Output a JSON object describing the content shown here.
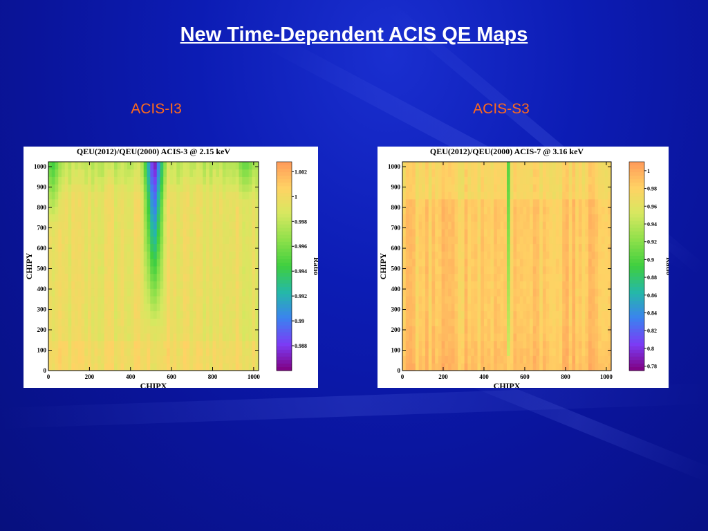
{
  "slide": {
    "title": "New Time-Dependent ACIS QE Maps",
    "left_label": "ACIS-I3",
    "right_label": "ACIS-S3"
  },
  "colors": {
    "background": "#0a149a",
    "title": "#ffffff",
    "label": "#ff6a1a",
    "colormap": [
      "#800080",
      "#7b3cf5",
      "#3b82f0",
      "#25b8a8",
      "#3fcf3f",
      "#8ee04a",
      "#d6e860",
      "#ffd264",
      "#ff9a5a"
    ]
  },
  "chart_data": [
    {
      "type": "heatmap",
      "title": "QEU(2012)/QEU(2000) ACIS-3 @ 2.15 keV",
      "xlabel": "CHIPX",
      "ylabel": "CHIPY",
      "colorbar_label": "Ratio",
      "xlim": [
        0,
        1024
      ],
      "ylim": [
        0,
        1024
      ],
      "x_ticks": [
        "0",
        "200",
        "400",
        "600",
        "800",
        "1000"
      ],
      "y_ticks": [
        "0",
        "100",
        "200",
        "300",
        "400",
        "500",
        "600",
        "700",
        "800",
        "900",
        "1000"
      ],
      "colorbar_range": [
        0.986,
        1.0028
      ],
      "colorbar_ticks": [
        "0.988",
        "0.99",
        "0.992",
        "0.994",
        "0.996",
        "0.998",
        "1",
        "1.002"
      ],
      "features": [
        {
          "x": 515,
          "y_range": [
            180,
            1024
          ],
          "ratio_min": 0.986,
          "description": "low-QE column"
        },
        {
          "x": 20,
          "y_range": [
            700,
            1024
          ],
          "ratio_min": 0.994
        },
        {
          "x": 960,
          "y_range": [
            800,
            1024
          ],
          "ratio_min": 0.995
        }
      ],
      "typical_ratio": 0.9995
    },
    {
      "type": "heatmap",
      "title": "QEU(2012)/QEU(2000) ACIS-7 @ 3.16 keV",
      "xlabel": "CHIPX",
      "ylabel": "CHIPY",
      "colorbar_label": "Ratio",
      "xlim": [
        0,
        1024
      ],
      "ylim": [
        0,
        1024
      ],
      "x_ticks": [
        "0",
        "200",
        "400",
        "600",
        "800",
        "1000"
      ],
      "y_ticks": [
        "0",
        "100",
        "200",
        "300",
        "400",
        "500",
        "600",
        "700",
        "800",
        "900",
        "1000"
      ],
      "colorbar_range": [
        0.775,
        1.01
      ],
      "colorbar_ticks": [
        "0.78",
        "0.8",
        "0.82",
        "0.84",
        "0.86",
        "0.88",
        "0.9",
        "0.92",
        "0.94",
        "0.96",
        "0.98",
        "1"
      ],
      "features": [
        {
          "x": 520,
          "y_range": [
            60,
            1024
          ],
          "ratio_min": 0.9,
          "description": "low-QE column"
        }
      ],
      "typical_ratio": 0.985
    }
  ]
}
